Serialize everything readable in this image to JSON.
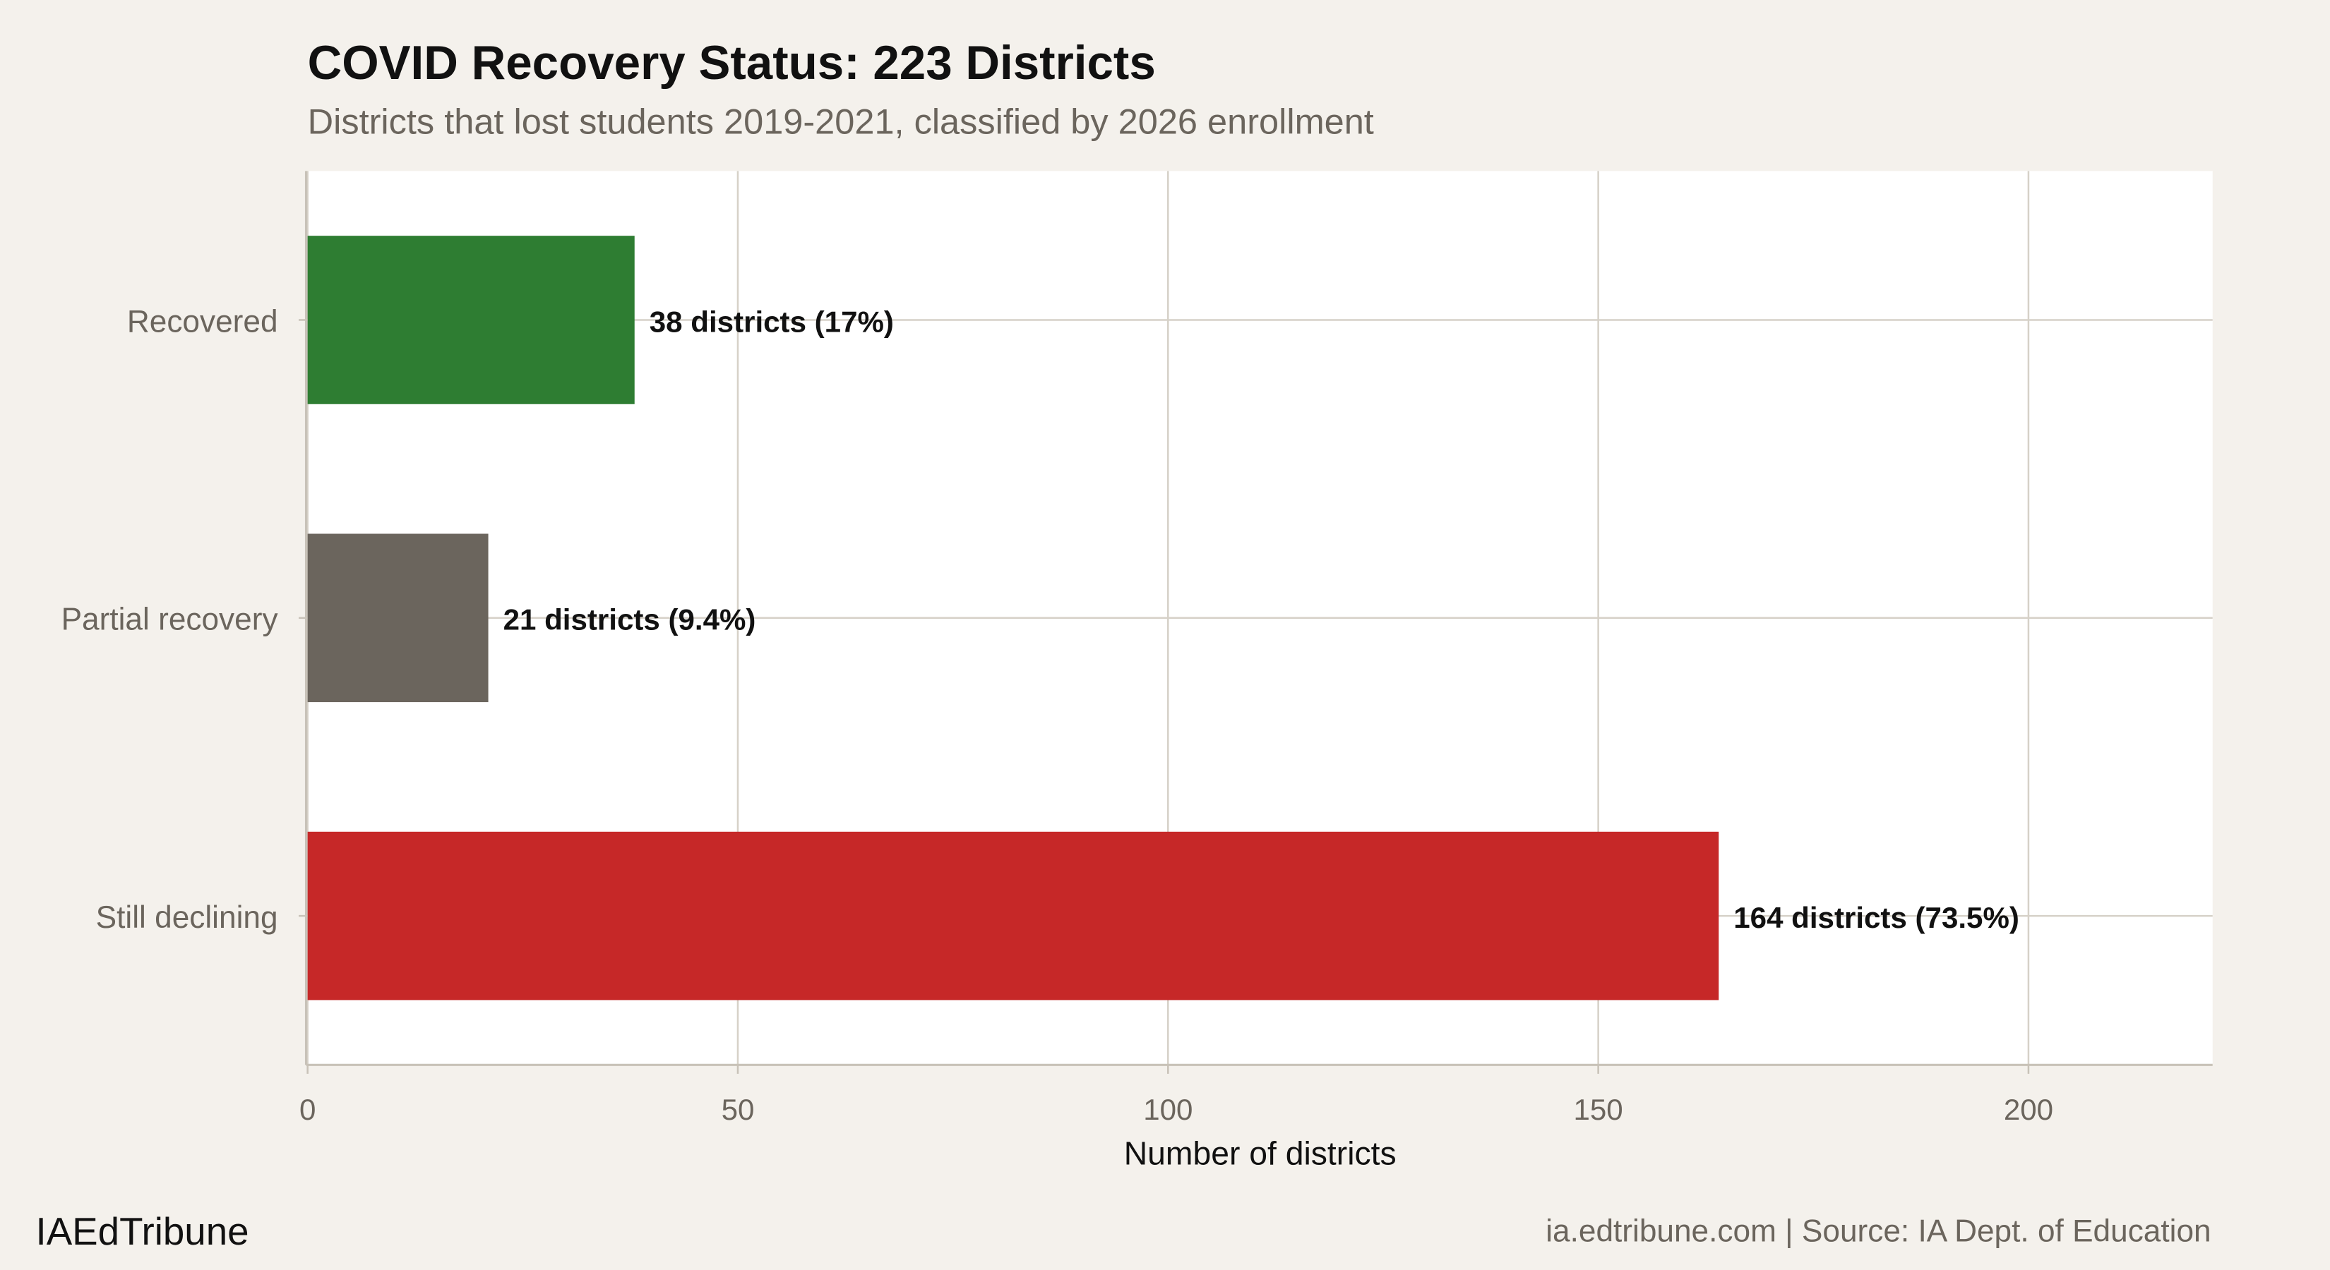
{
  "chart_data": {
    "type": "bar",
    "orientation": "horizontal",
    "title": "COVID Recovery Status: 223 Districts",
    "subtitle": "Districts that lost students 2019-2021, classified by 2026 enrollment",
    "xlabel": "Number of districts",
    "ylabel": "",
    "xlim": [
      0,
      221.4
    ],
    "xticks": [
      0,
      50,
      100,
      150,
      200
    ],
    "grid": true,
    "categories": [
      "Recovered",
      "Partial recovery",
      "Still declining"
    ],
    "values": [
      38,
      21,
      164
    ],
    "data_labels": [
      "38 districts (17%)",
      "21 districts (9.4%)",
      "164 districts (73.5%)"
    ],
    "colors": [
      "#2e7d32",
      "#6b655d",
      "#c62828"
    ]
  },
  "footer": {
    "brand": "IAEdTribune",
    "source": "ia.edtribune.com | Source: IA Dept. of Education"
  }
}
